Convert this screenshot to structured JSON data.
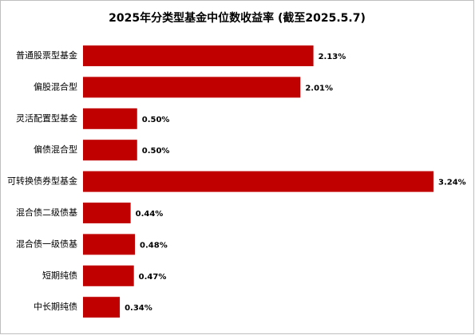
{
  "chart_data": {
    "type": "bar",
    "orientation": "horizontal",
    "title": "2025年分类型基金中位数收益率 (截至2025.5.7)",
    "categories": [
      "普通股票型基金",
      "偏股混合型",
      "灵活配置型基金",
      "偏债混合型",
      "可转换债券型基金",
      "混合债二级债基",
      "混合债一级债基",
      "短期纯债",
      "中长期纯债"
    ],
    "values": [
      2.13,
      2.01,
      0.5,
      0.5,
      3.24,
      0.44,
      0.48,
      0.47,
      0.34
    ],
    "value_labels": [
      "2.13%",
      "2.01%",
      "0.50%",
      "0.50%",
      "3.24%",
      "0.44%",
      "0.48%",
      "0.47%",
      "0.34%"
    ],
    "color": "#c00000"
  }
}
